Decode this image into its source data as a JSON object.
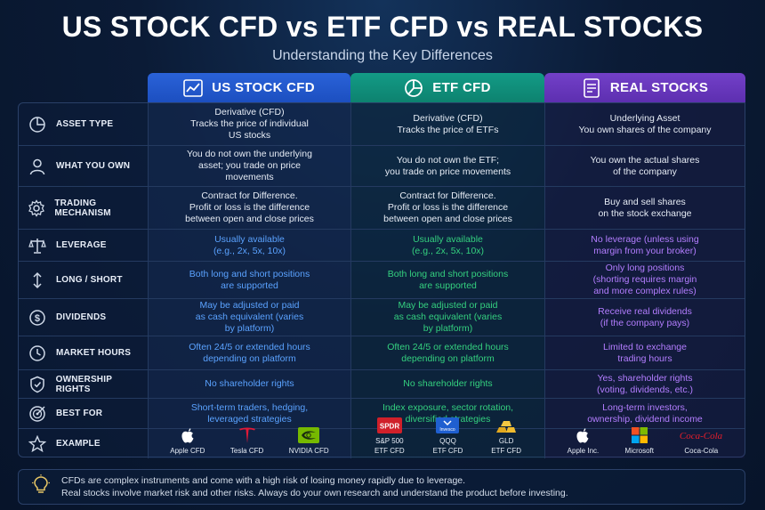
{
  "title": "US STOCK CFD vs ETF CFD vs REAL STOCKS",
  "subtitle": "Understanding the Key Differences",
  "columns": [
    {
      "label": "US STOCK CFD",
      "icon": "chart-line-icon",
      "color": "#2a62d8"
    },
    {
      "label": "ETF CFD",
      "icon": "pie-chart-icon",
      "color": "#139b86"
    },
    {
      "label": "REAL STOCKS",
      "icon": "document-icon",
      "color": "#7340c8"
    }
  ],
  "rows": [
    {
      "label": "ASSET TYPE",
      "icon": "pie-chart-icon",
      "us": [
        "Derivative (CFD)",
        "Tracks the price of individual",
        "US stocks"
      ],
      "etf": [
        "Derivative (CFD)",
        "Tracks the price of ETFs"
      ],
      "real": [
        "Underlying Asset",
        "You own shares of the company"
      ]
    },
    {
      "label": "WHAT YOU OWN",
      "icon": "person-icon",
      "us": [
        "You do not own the underlying",
        "asset; you trade on price",
        "movements"
      ],
      "etf": [
        "You do not own the ETF;",
        "you trade on price movements"
      ],
      "real": [
        "You own the actual shares",
        "of the company"
      ]
    },
    {
      "label": "TRADING MECHANISM",
      "icon": "gear-icon",
      "us": [
        "Contract for Difference.",
        "Profit or loss is the difference",
        "between open and close prices"
      ],
      "etf": [
        "Contract for Difference.",
        "Profit or loss is the difference",
        "between open and close prices"
      ],
      "real": [
        "Buy and sell shares",
        "on the stock exchange"
      ]
    },
    {
      "label": "LEVERAGE",
      "icon": "scale-icon",
      "us": [
        "Usually available",
        "(e.g., 2x, 5x, 10x)"
      ],
      "etf": [
        "Usually available",
        "(e.g., 2x, 5x, 10x)"
      ],
      "real": [
        "No leverage (unless using",
        "margin from your broker)"
      ]
    },
    {
      "label": "LONG / SHORT",
      "icon": "up-down-arrows-icon",
      "us": [
        "Both long and short positions",
        "are supported"
      ],
      "etf": [
        "Both long and short positions",
        "are supported"
      ],
      "real": [
        "Only long positions",
        "(shorting requires margin",
        "and more complex rules)"
      ]
    },
    {
      "label": "DIVIDENDS",
      "icon": "dollar-icon",
      "us": [
        "May be adjusted or paid",
        "as cash equivalent (varies",
        "by platform)"
      ],
      "etf": [
        "May be adjusted or paid",
        "as cash equivalent (varies",
        "by platform)"
      ],
      "real": [
        "Receive real dividends",
        "(if the company pays)"
      ]
    },
    {
      "label": "MARKET HOURS",
      "icon": "clock-icon",
      "us": [
        "Often 24/5 or extended hours",
        "depending on platform"
      ],
      "etf": [
        "Often 24/5 or extended hours",
        "depending on platform"
      ],
      "real": [
        "Limited to exchange",
        "trading hours"
      ]
    },
    {
      "label": "OWNERSHIP RIGHTS",
      "icon": "shield-check-icon",
      "us": [
        "No shareholder rights"
      ],
      "etf": [
        "No shareholder rights"
      ],
      "real": [
        "Yes, shareholder rights",
        "(voting, dividends, etc.)"
      ]
    },
    {
      "label": "BEST FOR",
      "icon": "target-icon",
      "us": [
        "Short-term traders, hedging,",
        "leveraged strategies"
      ],
      "etf": [
        "Index exposure, sector rotation,",
        "diversified strategies"
      ],
      "real": [
        "Long-term investors,",
        "ownership, dividend income"
      ]
    }
  ],
  "example": {
    "label": "EXAMPLE",
    "icon": "star-icon",
    "us": [
      {
        "name": "Apple CFD",
        "logo": "apple-logo-icon"
      },
      {
        "name": "Tesla CFD",
        "logo": "tesla-logo-icon"
      },
      {
        "name": "NVIDIA CFD",
        "logo": "nvidia-logo-icon"
      }
    ],
    "etf": [
      {
        "name": "S&P 500",
        "name2": "ETF CFD",
        "logo": "spdr-logo-icon",
        "logo_text": "SPDR"
      },
      {
        "name": "QQQ",
        "name2": "ETF CFD",
        "logo": "invesco-logo-icon",
        "logo_text": "Invesco"
      },
      {
        "name": "GLD",
        "name2": "ETF CFD",
        "logo": "gold-bars-icon"
      }
    ],
    "real": [
      {
        "name": "Apple Inc.",
        "logo": "apple-logo-icon"
      },
      {
        "name": "Microsoft",
        "logo": "microsoft-logo-icon"
      },
      {
        "name": "Coca-Cola",
        "logo": "coca-cola-logo-icon",
        "logo_text": "Coca-Cola"
      }
    ]
  },
  "footer": {
    "icon": "lightbulb-icon",
    "line1": "CFDs are complex instruments and come with a high risk of losing money rapidly due to leverage.",
    "line2": "Real stocks involve market risk and other risks. Always do your own research and understand the product before investing."
  },
  "colors": {
    "us_text": "#5aa2ff",
    "etf_text": "#34d07f",
    "real_text": "#b37dff"
  }
}
